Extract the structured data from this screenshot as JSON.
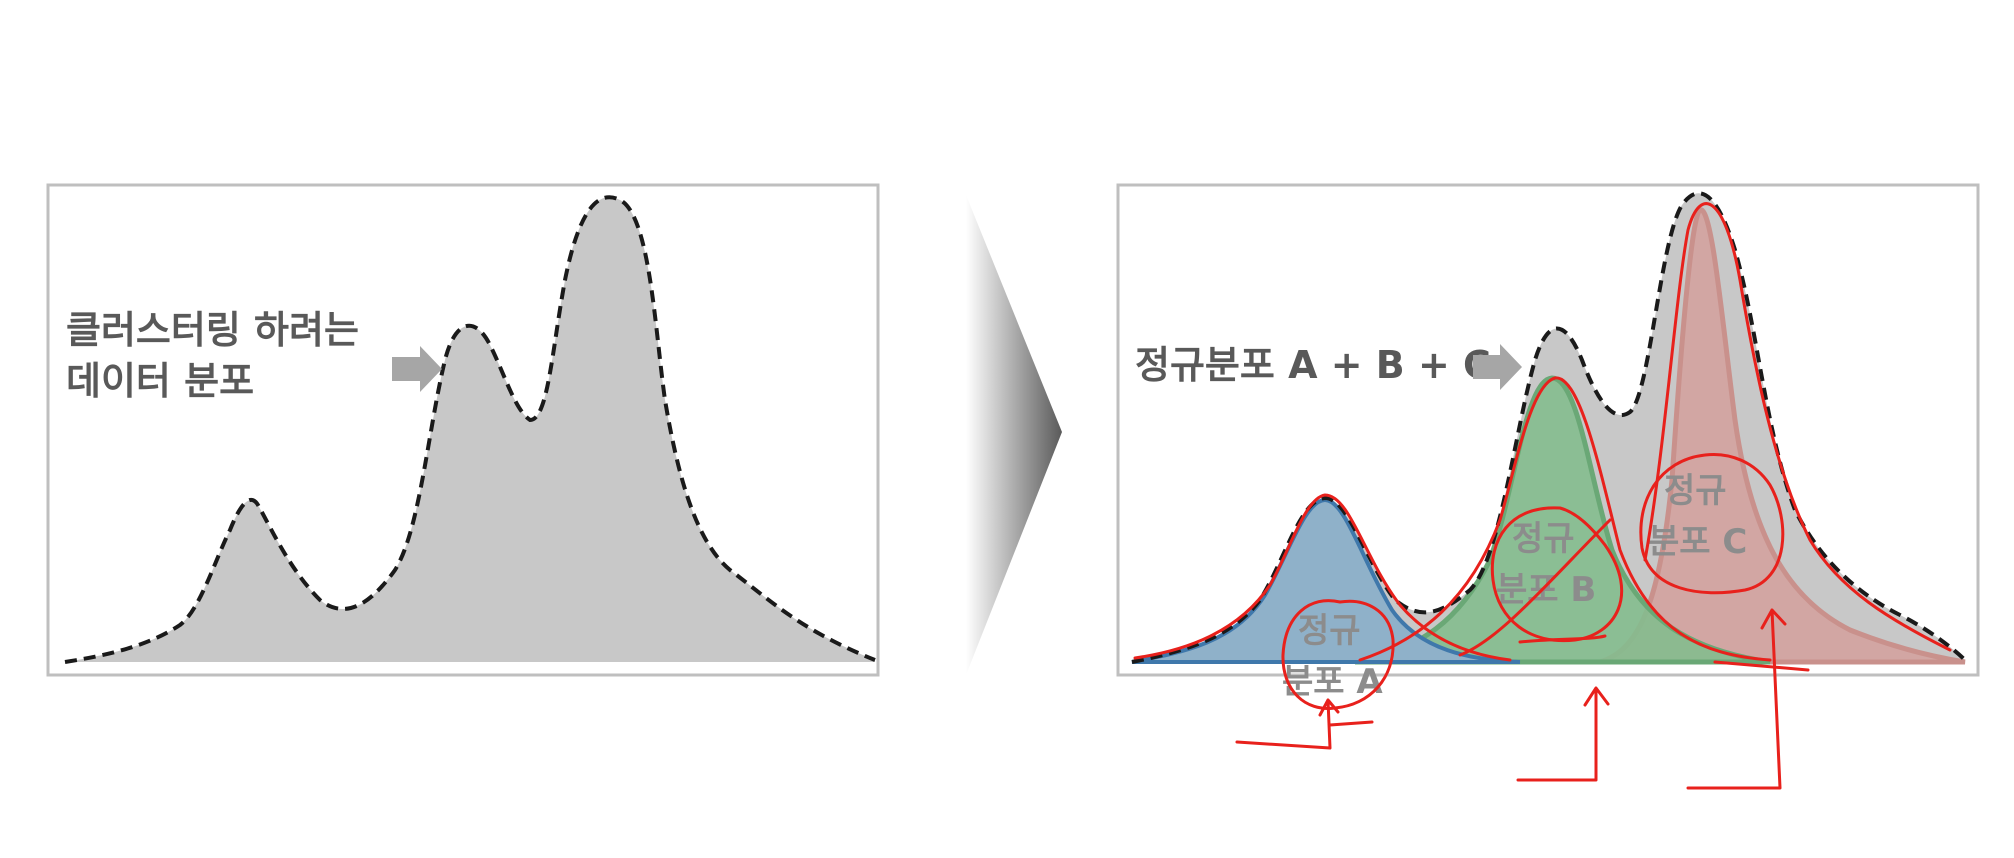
{
  "left_panel": {
    "label_line1": "클러스터링 하려는",
    "label_line2": "데이터 분포"
  },
  "right_panel": {
    "label": "정규분포 A + B + C",
    "dist_a": {
      "line1": "정규",
      "line2": "분포 A"
    },
    "dist_b": {
      "line1": "정규",
      "line2": "분포 B"
    },
    "dist_c": {
      "line1": "정규",
      "line2": "분포 C"
    }
  },
  "colors": {
    "frame": "#bfbfbf",
    "fill_gray": "#c8c8c8",
    "label_gray": "#595959",
    "arrow_gray": "#a6a6a6",
    "dist_a": "#8fb1c9",
    "dist_b": "#84bd8e",
    "dist_c": "#d4a09c",
    "annotation_red": "#e8211c"
  }
}
